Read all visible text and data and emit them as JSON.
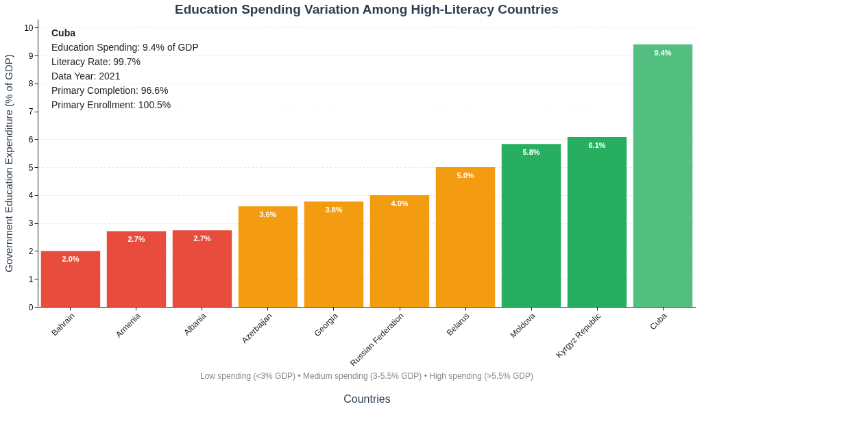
{
  "chart_data": {
    "type": "bar",
    "title": "Education Spending Variation Among High-Literacy Countries",
    "xlabel": "Countries",
    "ylabel": "Government Education Expenditure (% of GDP)",
    "categories": [
      "Bahrain",
      "Armenia",
      "Albania",
      "Azerbaijan",
      "Georgia",
      "Russian Federation",
      "Belarus",
      "Moldova",
      "Kyrgyz Republic",
      "Cuba"
    ],
    "values": [
      2.0,
      2.71,
      2.74,
      3.6,
      3.77,
      4.0,
      5.0,
      5.83,
      6.08,
      9.4
    ],
    "value_labels": [
      "2.0%",
      "2.7%",
      "2.7%",
      "3.6%",
      "3.8%",
      "4.0%",
      "5.0%",
      "5.8%",
      "6.1%",
      "9.4%"
    ],
    "colors": [
      "#e74c3c",
      "#e74c3c",
      "#e74c3c",
      "#f39c12",
      "#f39c12",
      "#f39c12",
      "#f39c12",
      "#27ae60",
      "#27ae60",
      "#52be80"
    ],
    "ylim": [
      0,
      10.3
    ],
    "yticks": [
      0,
      1,
      2,
      3,
      4,
      5,
      6,
      7,
      8,
      9,
      10
    ],
    "grid": "y",
    "annotations": [
      "Cuba",
      "Education Spending: 9.4% of GDP",
      "Literacy Rate: 99.7%",
      "Data Year: 2021",
      "Primary Completion: 96.6%",
      "Primary Enrollment: 100.5%",
      "Low spending (<3% GDP) • Medium spending (3-5.5% GDP) • High spending (>5.5% GDP)"
    ]
  }
}
